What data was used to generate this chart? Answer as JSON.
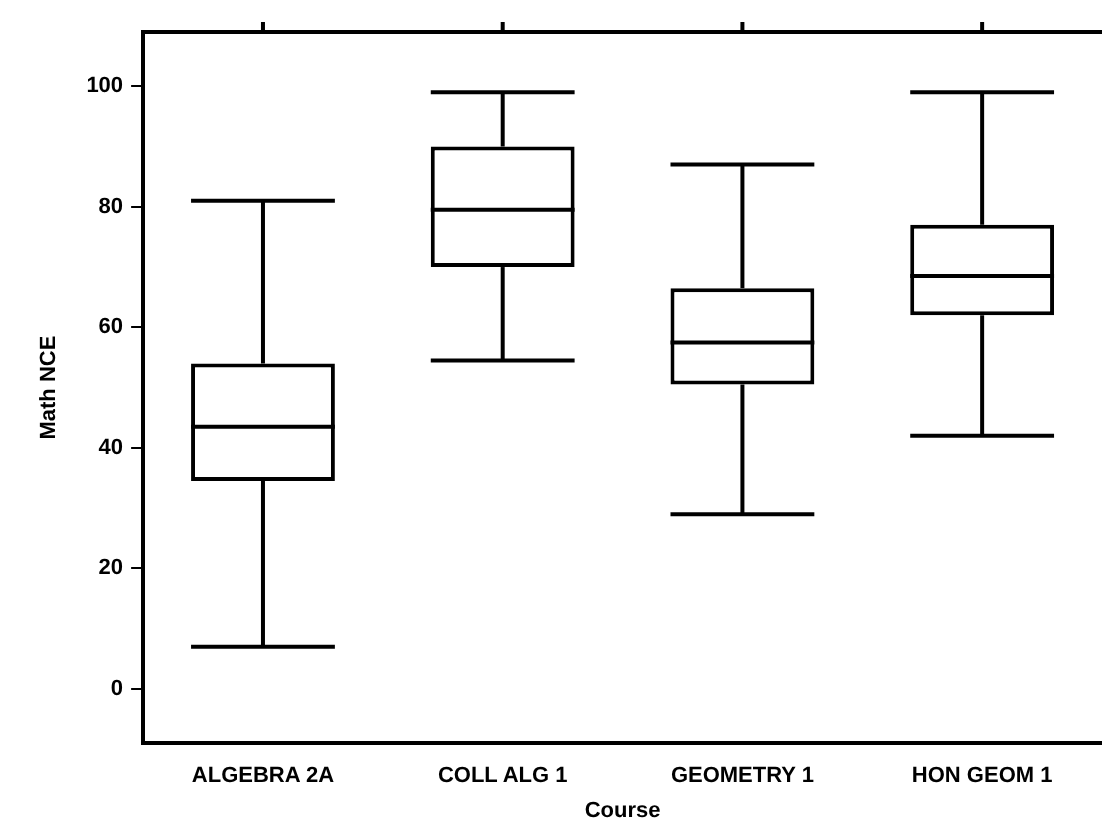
{
  "chart_data": {
    "type": "box",
    "xlabel": "Course",
    "ylabel": "Math NCE",
    "color": "#000000",
    "categories": [
      "ALGEBRA 2A",
      "COLL ALG 1",
      "GEOMETRY 1",
      "HON GEOM 1"
    ],
    "boxes": [
      {
        "low": 7,
        "q1": 34.5,
        "median": 43.5,
        "q3": 54,
        "high": 81
      },
      {
        "low": 54.5,
        "q1": 70,
        "median": 79.5,
        "q3": 90,
        "high": 99
      },
      {
        "low": 29,
        "q1": 50.5,
        "median": 57.5,
        "q3": 66.5,
        "high": 87
      },
      {
        "low": 42,
        "q1": 62,
        "median": 68.5,
        "q3": 77,
        "high": 99
      }
    ],
    "ylim": [
      -9,
      109
    ],
    "yticks": [
      0,
      20,
      40,
      60,
      80,
      100
    ],
    "grid": false,
    "legend": false
  }
}
